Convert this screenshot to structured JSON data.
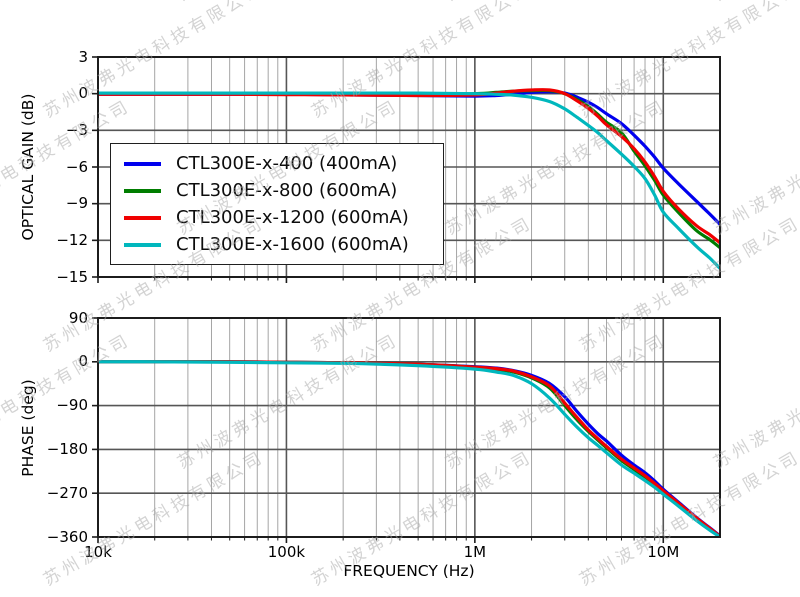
{
  "watermark": {
    "text": "苏州波弗光电科技有限公司",
    "color": "#a8a8a8",
    "opacity": 0.5
  },
  "chart_data": [
    {
      "type": "line",
      "id": "gain",
      "title": "",
      "ylabel": "OPTICAL GAIN (dB)",
      "xscale": "log",
      "xlim": [
        10000,
        20000000
      ],
      "ylim": [
        -15,
        3
      ],
      "yticks": [
        3,
        0,
        -3,
        -6,
        -9,
        -12,
        -15
      ],
      "ytick_labels": [
        "3",
        "0",
        "−3",
        "−6",
        "−9",
        "−12",
        "−15"
      ],
      "xticks": [
        10000,
        100000,
        1000000,
        10000000
      ],
      "xtick_labels": [
        "10k",
        "100k",
        "1M",
        "10M"
      ],
      "show_xtick_labels": false,
      "grid": {
        "major": true,
        "minor_x": true
      },
      "x": [
        10000,
        20000,
        50000,
        100000,
        200000,
        500000,
        1000000,
        1300000,
        1600000,
        2000000,
        2500000,
        3000000,
        3500000,
        4000000,
        4500000,
        5000000,
        6000000,
        7000000,
        8000000,
        9000000,
        10000000,
        12000000,
        15000000,
        17500000,
        20000000
      ],
      "series": [
        {
          "name": "CTL300E-x-400 (400mA)",
          "color": "#0000ee",
          "y": [
            -0.05,
            -0.05,
            -0.05,
            -0.05,
            -0.1,
            -0.15,
            -0.2,
            -0.15,
            -0.05,
            0.1,
            0.15,
            0.05,
            -0.3,
            -0.7,
            -1.15,
            -1.65,
            -2.45,
            -3.4,
            -4.3,
            -5.2,
            -6.1,
            -7.35,
            -8.8,
            -9.8,
            -10.7
          ]
        },
        {
          "name": "CTL300E-x-800 (600mA)",
          "color": "#007d00",
          "y": [
            0,
            0,
            0,
            0,
            0,
            -0.05,
            0,
            0.1,
            0.2,
            0.25,
            0.25,
            0,
            -0.5,
            -1.05,
            -1.7,
            -2.35,
            -3.2,
            -4.7,
            -5.9,
            -7.1,
            -8.3,
            -9.7,
            -11.2,
            -11.9,
            -12.6
          ]
        },
        {
          "name": "CTL300E-x-1200 (600mA)",
          "color": "#f00000",
          "y": [
            -0.05,
            -0.05,
            -0.05,
            -0.08,
            -0.1,
            -0.15,
            -0.1,
            0.05,
            0.2,
            0.3,
            0.3,
            0,
            -0.6,
            -1.2,
            -1.85,
            -2.55,
            -3.5,
            -4.5,
            -5.6,
            -6.8,
            -8.0,
            -9.4,
            -10.8,
            -11.5,
            -12.2
          ]
        },
        {
          "name": "CTL300E-x-1600 (600mA)",
          "color": "#00b7bd",
          "y": [
            0.05,
            0.05,
            0.05,
            0.05,
            0.05,
            0.05,
            0,
            -0.05,
            -0.12,
            -0.3,
            -0.65,
            -1.25,
            -1.95,
            -2.6,
            -3.2,
            -3.85,
            -4.95,
            -5.95,
            -6.95,
            -8.3,
            -9.7,
            -11.0,
            -12.5,
            -13.4,
            -14.3
          ]
        }
      ],
      "legend": {
        "position": "upper-left-inside",
        "entries": [
          {
            "label": "CTL300E-x-400 (400mA)",
            "color": "#0000ee"
          },
          {
            "label": "CTL300E-x-800 (600mA)",
            "color": "#007d00"
          },
          {
            "label": "CTL300E-x-1200 (600mA)",
            "color": "#f00000"
          },
          {
            "label": "CTL300E-x-1600 (600mA)",
            "color": "#00b7bd"
          }
        ]
      }
    },
    {
      "type": "line",
      "id": "phase",
      "title": "",
      "ylabel": "PHASE (deg)",
      "xlabel": "FREQUENCY (Hz)",
      "xscale": "log",
      "xlim": [
        10000,
        20000000
      ],
      "ylim": [
        -360,
        90
      ],
      "yticks": [
        90,
        0,
        -90,
        -180,
        -270,
        -360
      ],
      "ytick_labels": [
        "90",
        "0",
        "−90",
        "−180",
        "−270",
        "−360"
      ],
      "xticks": [
        10000,
        100000,
        1000000,
        10000000
      ],
      "xtick_labels": [
        "10k",
        "100k",
        "1M",
        "10M"
      ],
      "show_xtick_labels": true,
      "grid": {
        "major": true,
        "minor_x": true
      },
      "x": [
        10000,
        20000,
        50000,
        100000,
        200000,
        500000,
        1000000,
        1300000,
        1600000,
        2000000,
        2500000,
        3000000,
        3500000,
        4000000,
        4500000,
        5000000,
        6000000,
        7000000,
        8000000,
        9000000,
        10000000,
        12000000,
        15000000,
        17500000,
        20000000
      ],
      "series": [
        {
          "name": "CTL300E-x-400 (400mA)",
          "color": "#0000ee",
          "y": [
            0,
            0,
            0,
            -1,
            -2,
            -5,
            -10,
            -13,
            -18,
            -28,
            -45,
            -72,
            -103,
            -128,
            -148,
            -163,
            -192,
            -212,
            -228,
            -245,
            -262,
            -288,
            -320,
            -340,
            -358
          ]
        },
        {
          "name": "CTL300E-x-800 (600mA)",
          "color": "#007d00",
          "y": [
            0,
            0,
            0,
            -1,
            -2,
            -5,
            -11,
            -15,
            -21,
            -33,
            -54,
            -90,
            -120,
            -143,
            -161,
            -177,
            -203,
            -221,
            -237,
            -252,
            -266,
            -291,
            -322,
            -342,
            -359
          ]
        },
        {
          "name": "CTL300E-x-1200 (600mA)",
          "color": "#f00000",
          "y": [
            0,
            0,
            0,
            -1,
            -2,
            -5,
            -11,
            -14,
            -19,
            -31,
            -50,
            -85,
            -115,
            -140,
            -158,
            -174,
            -200,
            -218,
            -234,
            -250,
            -265,
            -290,
            -321,
            -341,
            -359
          ]
        },
        {
          "name": "CTL300E-x-1600 (600mA)",
          "color": "#00b7bd",
          "y": [
            0,
            0,
            -1,
            -2,
            -3,
            -8,
            -15,
            -21,
            -28,
            -45,
            -75,
            -108,
            -135,
            -156,
            -172,
            -187,
            -212,
            -229,
            -244,
            -258,
            -272,
            -296,
            -326,
            -345,
            -360
          ]
        }
      ]
    }
  ]
}
